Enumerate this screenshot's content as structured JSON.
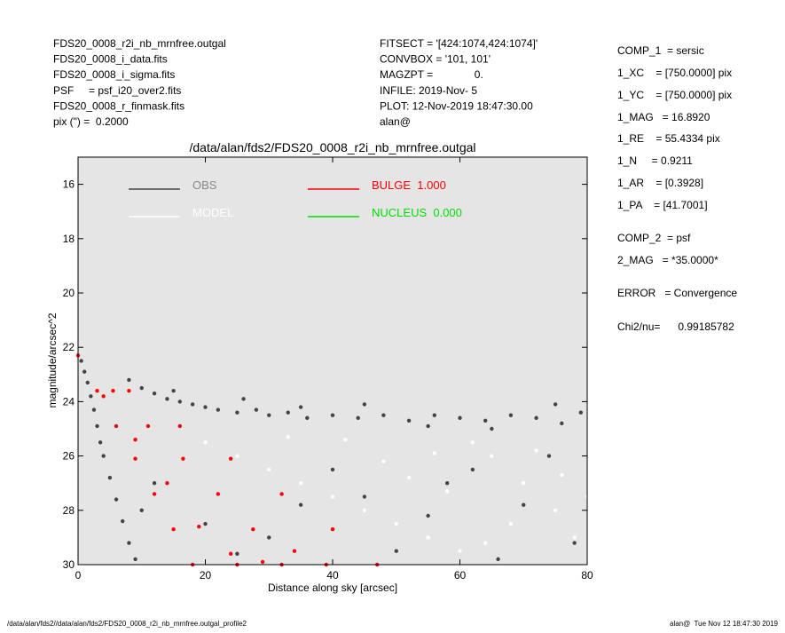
{
  "header": {
    "left": [
      "FDS20_0008_r2i_nb_mrnfree.outgal",
      "FDS20_0008_i_data.fits",
      "FDS20_0008_i_sigma.fits",
      "PSF     = psf_i20_over2.fits",
      "FDS20_0008_r_finmask.fits",
      "pix (\") =  0.2000"
    ],
    "middle": [
      "FITSECT = '[424:1074,424:1074]'",
      "CONVBOX = '101, 101'",
      "MAGZPT =              0.",
      "INFILE: 2019-Nov- 5",
      "PLOT: 12-Nov-2019 18:47:30.00",
      "alan@"
    ],
    "right": [
      "COMP_1  = sersic",
      "1_XC    = [750.0000] pix",
      "1_YC    = [750.0000] pix",
      "1_MAG   = 16.8920",
      "1_RE    = 55.4334 pix",
      "1_N     = 0.9211",
      "1_AR    = [0.3928]",
      "1_PA    = [41.7001]",
      "COMP_2  = psf",
      "2_MAG   = *35.0000*",
      "ERROR   = Convergence",
      "Chi2/nu=      0.99185782"
    ]
  },
  "footer": {
    "left": "/data/alan/fds2//data/alan/fds2/FDS20_0008_r2i_nb_mrnfree.outgal_profile2",
    "right": "alan@  Tue Nov 12 18:47:30 2019"
  },
  "chart_data": {
    "type": "scatter",
    "title": "/data/alan/fds2/FDS20_0008_r2i_nb_mrnfree.outgal",
    "xlabel": "Distance along sky [arcsec]",
    "ylabel": "magnitude/arcsec^2",
    "xlim": [
      0,
      80
    ],
    "xticks": [
      0,
      20,
      40,
      60,
      80
    ],
    "ylim": [
      30,
      15
    ],
    "yticks": [
      16,
      18,
      20,
      22,
      24,
      26,
      28,
      30
    ],
    "background": "#e5e5e5",
    "series": [
      {
        "name": "OBS",
        "color": "#444444",
        "x": [
          0.5,
          1,
          1.5,
          2,
          2.5,
          3,
          3.5,
          4,
          5,
          6,
          7,
          8,
          9,
          8,
          10,
          12,
          14,
          16,
          18,
          20,
          22,
          25,
          28,
          30,
          33,
          36,
          40,
          44,
          48,
          52,
          56,
          60,
          64,
          68,
          72,
          76,
          79,
          15,
          26,
          35,
          45,
          55,
          65,
          75,
          12,
          20,
          30,
          45,
          55,
          62,
          70,
          78,
          10,
          25,
          40,
          50,
          66,
          74,
          58,
          35
        ],
        "values": [
          22.5,
          22.9,
          23.3,
          23.8,
          24.3,
          24.9,
          25.5,
          26.0,
          26.8,
          27.6,
          28.4,
          29.2,
          29.8,
          23.2,
          23.5,
          23.7,
          23.9,
          24.0,
          24.1,
          24.2,
          24.3,
          24.4,
          24.3,
          24.5,
          24.4,
          24.6,
          24.5,
          24.6,
          24.5,
          24.7,
          24.5,
          24.6,
          24.7,
          24.5,
          24.6,
          24.8,
          24.4,
          23.6,
          23.9,
          24.2,
          24.1,
          24.9,
          25.0,
          24.1,
          27,
          28.5,
          29,
          27.5,
          28.2,
          26.5,
          27.8,
          29.2,
          28,
          29.6,
          26.5,
          29.5,
          29.8,
          26,
          27,
          27.8
        ]
      },
      {
        "name": "MODEL",
        "color": "#ffffff",
        "x": [
          20,
          25,
          30,
          35,
          40,
          45,
          50,
          55,
          60,
          65,
          70,
          75,
          78,
          62,
          68,
          72,
          48,
          58,
          52,
          42,
          76,
          64,
          56,
          80,
          33
        ],
        "values": [
          25.5,
          26,
          26.5,
          27,
          27.5,
          28,
          28.5,
          29,
          29.5,
          26,
          27,
          28,
          29,
          25.5,
          28.5,
          25.8,
          26.2,
          27.3,
          26.8,
          25.4,
          26.7,
          29.2,
          25.9,
          27.5,
          25.3
        ]
      },
      {
        "name": "BULGE  1.000",
        "color": "#ff0000",
        "x": [
          0,
          3,
          6,
          9,
          12,
          15,
          18,
          8,
          16,
          24,
          32,
          40,
          47,
          5.5,
          11,
          16.5,
          22,
          27.5,
          32,
          25,
          39,
          4,
          9,
          14,
          19,
          24,
          29,
          34
        ],
        "values": [
          22.3,
          23.6,
          24.9,
          26.1,
          27.4,
          28.7,
          30,
          23.6,
          24.9,
          26.1,
          27.4,
          28.7,
          30,
          23.6,
          24.9,
          26.1,
          27.4,
          28.7,
          30,
          30,
          30,
          23.8,
          25.4,
          27.0,
          28.6,
          29.6,
          29.9,
          29.5
        ]
      },
      {
        "name": "NUCLEUS  0.000",
        "color": "#00dd00",
        "x": [],
        "values": []
      }
    ]
  }
}
